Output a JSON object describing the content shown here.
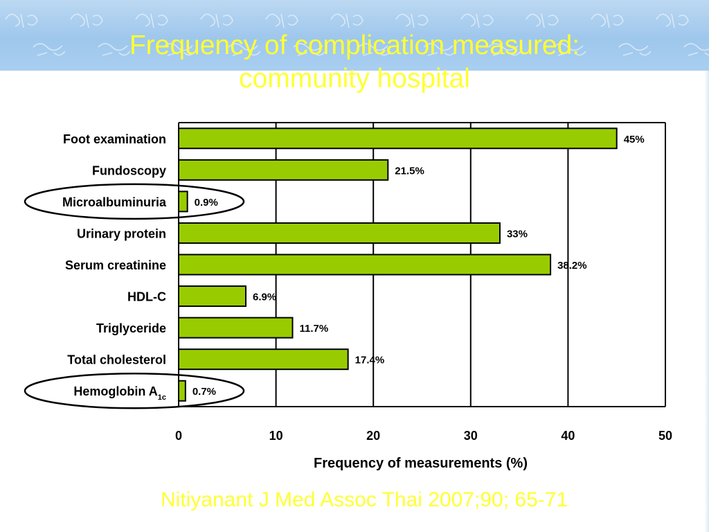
{
  "slide": {
    "title_line1": "Frequency of complication measured:",
    "title_line2": "community hospital",
    "citation": "Nitiyanant J Med Assoc Thai 2007;90; 65-71"
  },
  "colors": {
    "bar_fill": "#99cc00",
    "title_text": "#ffff33",
    "header_band": "#a9cff0"
  },
  "chart_data": {
    "type": "bar",
    "orientation": "horizontal",
    "categories": [
      "Foot examination",
      "Fundoscopy",
      "Microalbuminuria",
      "Urinary protein",
      "Serum creatinine",
      "HDL-C",
      "Triglyceride",
      "Total cholesterol",
      "Hemoglobin A1c"
    ],
    "values": [
      45,
      21.5,
      0.9,
      33,
      38.2,
      6.9,
      11.7,
      17.4,
      0.7
    ],
    "data_labels": [
      "45%",
      "21.5%",
      "0.9%",
      "33%",
      "38.2%",
      "6.9%",
      "11.7%",
      "17.4%",
      "0.7%"
    ],
    "highlighted": [
      "Microalbuminuria",
      "Hemoglobin A1c"
    ],
    "xlabel": "Frequency of measurements (%)",
    "xlim": [
      0,
      50
    ],
    "xticks": [
      0,
      10,
      20,
      30,
      40,
      50
    ],
    "grid": "vertical"
  }
}
